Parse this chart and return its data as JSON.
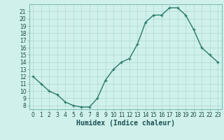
{
  "x": [
    0,
    1,
    2,
    3,
    4,
    5,
    6,
    7,
    8,
    9,
    10,
    11,
    12,
    13,
    14,
    15,
    16,
    17,
    18,
    19,
    20,
    21,
    22,
    23
  ],
  "y": [
    12,
    11,
    10,
    9.5,
    8.5,
    8,
    7.8,
    7.8,
    9,
    11.5,
    13,
    14,
    14.5,
    16.5,
    19.5,
    20.5,
    20.5,
    21.5,
    21.5,
    20.5,
    18.5,
    16,
    15,
    14
  ],
  "line_color": "#2a7a6a",
  "marker": "+",
  "bg_color": "#cff0eb",
  "grid_color": "#b0d8d2",
  "xlabel": "Humidex (Indice chaleur)",
  "ylabel_ticks": [
    8,
    9,
    10,
    11,
    12,
    13,
    14,
    15,
    16,
    17,
    18,
    19,
    20,
    21
  ],
  "ylim": [
    7.5,
    22.0
  ],
  "xlim": [
    -0.5,
    23.5
  ],
  "tick_fontsize": 5.5,
  "xlabel_fontsize": 7
}
